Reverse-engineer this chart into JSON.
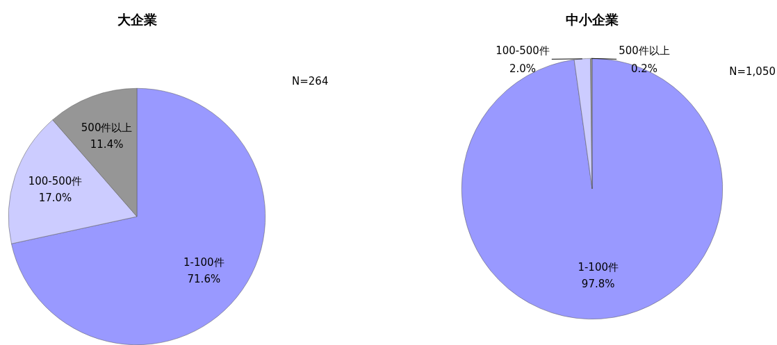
{
  "chart_data": [
    {
      "type": "pie",
      "title": "大企業",
      "categories": [
        "1-100件",
        "100-500件",
        "500件以上"
      ],
      "values": [
        71.6,
        17.0,
        11.4
      ],
      "colors": [
        "#9999ff",
        "#ccccff",
        "#969696"
      ],
      "value_labels": [
        "71.6%",
        "17.0%",
        "11.4%"
      ],
      "annotations": [
        "N=264"
      ]
    },
    {
      "type": "pie",
      "title": "中小企業",
      "categories": [
        "1-100件",
        "100-500件",
        "500件以上"
      ],
      "values": [
        97.8,
        2.0,
        0.2
      ],
      "colors": [
        "#9999ff",
        "#ccccff",
        "#969696"
      ],
      "value_labels": [
        "97.8%",
        "2.0%",
        "0.2%"
      ],
      "annotations": [
        "N=1,050"
      ]
    }
  ]
}
